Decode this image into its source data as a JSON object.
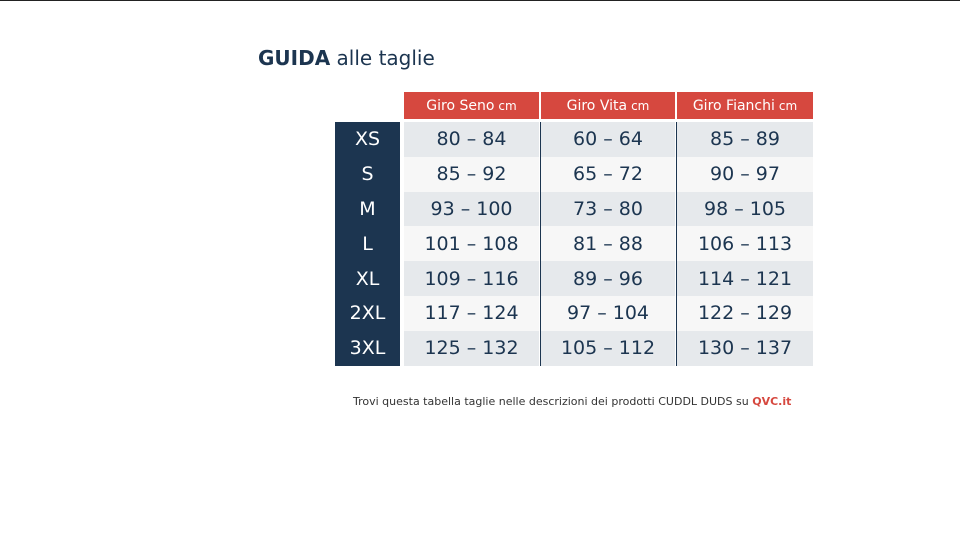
{
  "header": {
    "title_bold": "GUIDA",
    "title_rest": "alle taglie"
  },
  "table": {
    "columns": [
      {
        "name": "Giro Seno",
        "unit": "cm"
      },
      {
        "name": "Giro Vita",
        "unit": "cm"
      },
      {
        "name": "Giro Fianchi",
        "unit": "cm"
      }
    ],
    "rows": [
      [
        "XS",
        "80 – 84",
        "60 – 64",
        "85 – 89"
      ],
      [
        "S",
        "85 – 92",
        "65 – 72",
        "90 – 97"
      ],
      [
        "M",
        "93 – 100",
        "73 – 80",
        "98 – 105"
      ],
      [
        "L",
        "101 – 108",
        "81 – 88",
        "106 – 113"
      ],
      [
        "XL",
        "109 – 116",
        "89 – 96",
        "114 – 121"
      ],
      [
        "2XL",
        "117 – 124",
        "97 – 104",
        "122 – 129"
      ],
      [
        "3XL",
        "125 – 132",
        "105 – 112",
        "130 – 137"
      ]
    ]
  },
  "footer": {
    "text": "Trovi questa tabella taglie nelle descrizioni dei prodotti CUDDL DUDS su",
    "link": "QVC.it"
  }
}
